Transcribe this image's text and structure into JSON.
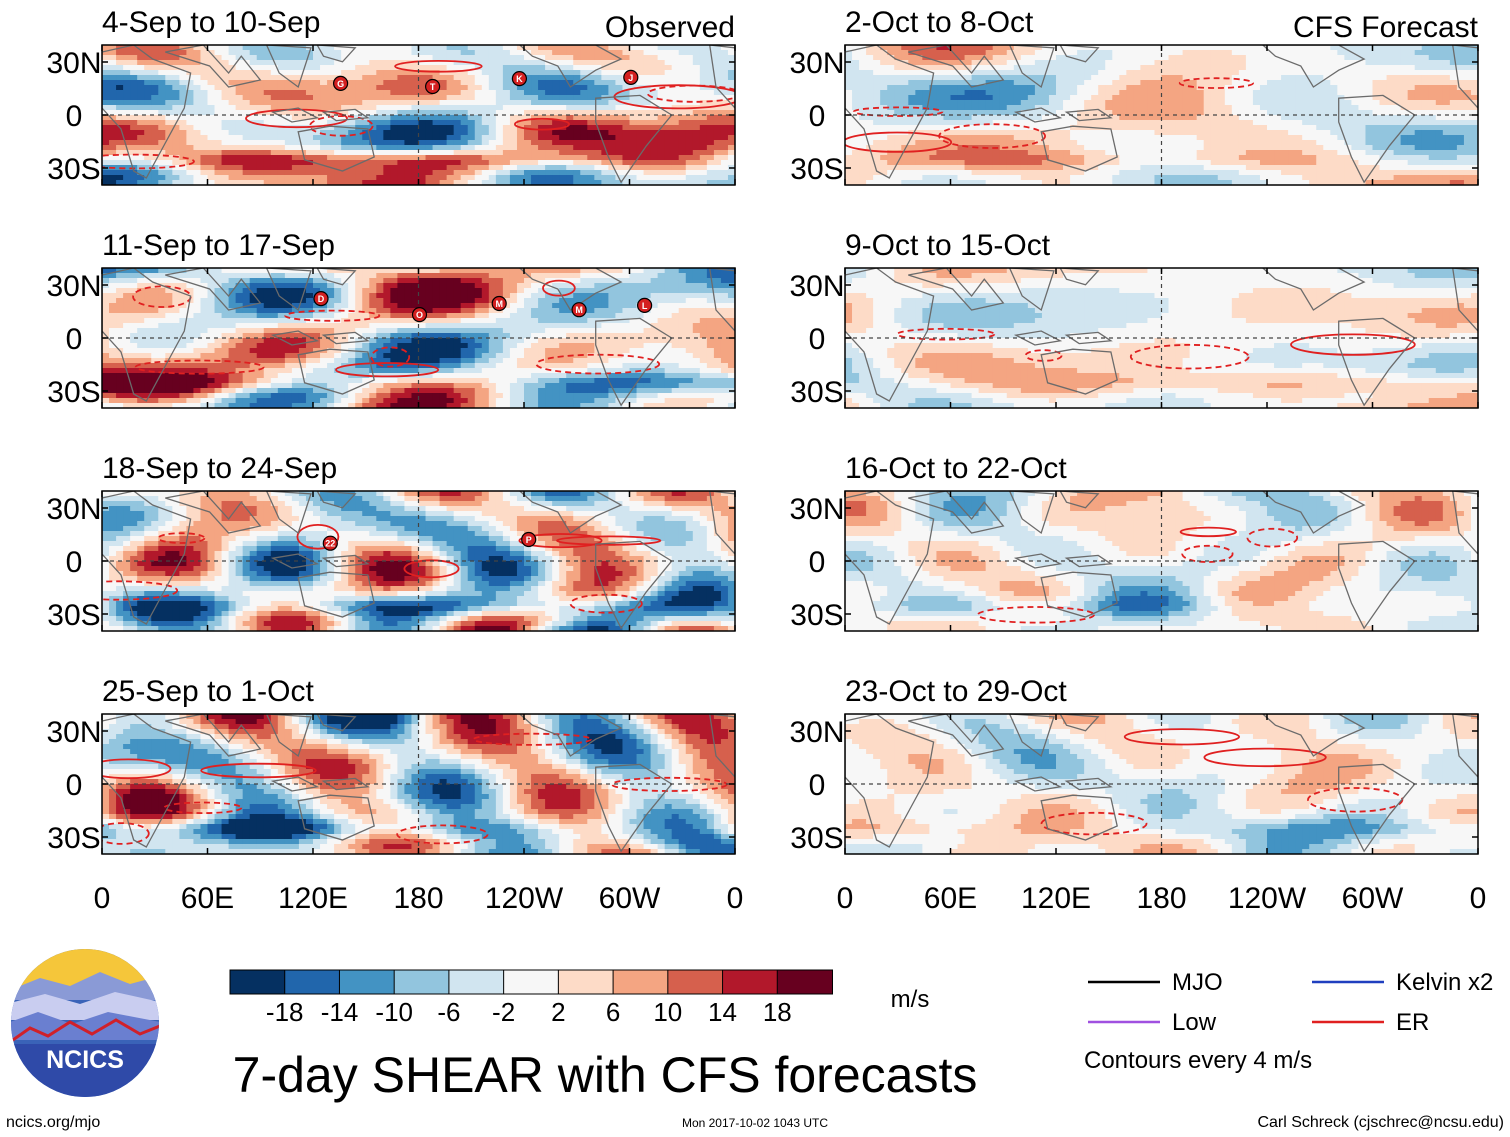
{
  "chart_data": {
    "type": "heatmap",
    "title": "7-day SHEAR with CFS forecasts",
    "units": "m/s",
    "colorbar": {
      "ticks": [
        "-18",
        "-14",
        "-10",
        "-6",
        "-2",
        "2",
        "6",
        "10",
        "14",
        "18"
      ],
      "colors": [
        "#053061",
        "#2166ac",
        "#4393c3",
        "#92c5de",
        "#d1e5f0",
        "#f7f7f7",
        "#fddbc7",
        "#f4a582",
        "#d6604d",
        "#b2182b",
        "#67001f"
      ]
    },
    "lat_labels": [
      "30N",
      "0",
      "30S"
    ],
    "lon_labels": [
      "0",
      "60E",
      "120E",
      "180",
      "120W",
      "60W",
      "0"
    ],
    "columns": [
      {
        "label": "Observed",
        "panels": [
          {
            "title": "4-Sep to 10-Sep",
            "storms": [
              "G",
              "T",
              "K",
              "J"
            ]
          },
          {
            "title": "11-Sep to 17-Sep",
            "storms": [
              "D",
              "O",
              "M",
              "M",
              "L"
            ]
          },
          {
            "title": "18-Sep to 24-Sep",
            "storms": [
              "22",
              "P"
            ]
          },
          {
            "title": "25-Sep to 1-Oct",
            "storms": []
          }
        ]
      },
      {
        "label": "CFS Forecast",
        "panels": [
          {
            "title": "2-Oct to 8-Oct",
            "storms": []
          },
          {
            "title": "9-Oct to 15-Oct",
            "storms": []
          },
          {
            "title": "16-Oct to 22-Oct",
            "storms": []
          },
          {
            "title": "23-Oct to 29-Oct",
            "storms": []
          }
        ]
      }
    ],
    "legend": {
      "items": [
        {
          "label": "MJO",
          "color": "#000000"
        },
        {
          "label": "Kelvin x2",
          "color": "#1f3fbf"
        },
        {
          "label": "Low",
          "color": "#a050e0"
        },
        {
          "label": "ER",
          "color": "#e02020"
        }
      ],
      "note": "Contours every 4 m/s"
    }
  },
  "footer": {
    "logo_text": "NCICS",
    "url": "ncics.org/mjo",
    "timestamp": "Mon 2017-10-02 1043 UTC",
    "author": "Carl Schreck (cjschrec@ncsu.edu)"
  }
}
